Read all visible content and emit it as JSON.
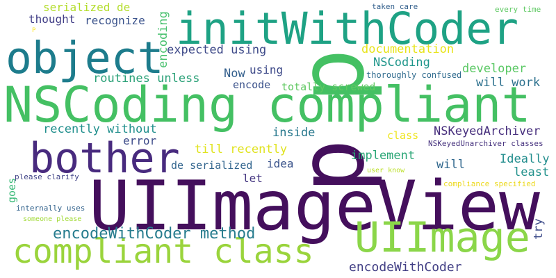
{
  "words": [
    {
      "text": "UIImageView",
      "color": "#440f5c"
    },
    {
      "text": "NSCoding compliant",
      "color": "#44c063"
    },
    {
      "text": "initWithCoder",
      "color": "#1ea284"
    },
    {
      "text": "object",
      "color": "#1d7c8c"
    },
    {
      "text": "p",
      "color": "#44c063"
    },
    {
      "text": "p",
      "color": "#440f5c"
    },
    {
      "text": "bother",
      "color": "#482a7e"
    },
    {
      "text": "compliant class",
      "color": "#9ad43c"
    },
    {
      "text": "UIImage",
      "color": "#8bd649"
    },
    {
      "text": "encodeWithCoder method",
      "color": "#277c8e"
    },
    {
      "text": "encodeWithCoder",
      "color": "#423f85"
    },
    {
      "text": "serialized de",
      "color": "#b3dd2b"
    },
    {
      "text": "thought",
      "color": "#413e86"
    },
    {
      "text": "recognize",
      "color": "#3a528b"
    },
    {
      "text": "expected using",
      "color": "#3e4a89"
    },
    {
      "text": "documentation",
      "color": "#e8e419"
    },
    {
      "text": "NSCoding",
      "color": "#1f968b"
    },
    {
      "text": "developer",
      "color": "#5ac864"
    },
    {
      "text": "will work",
      "color": "#2d718e"
    },
    {
      "text": "routines unless",
      "color": "#2ba178"
    },
    {
      "text": "using",
      "color": "#3e4a89"
    },
    {
      "text": "Now",
      "color": "#34608d"
    },
    {
      "text": "encode",
      "color": "#3b528b"
    },
    {
      "text": "totally screwed",
      "color": "#60c862"
    },
    {
      "text": "thoroughly confused",
      "color": "#2f6b8e"
    },
    {
      "text": "recently without",
      "color": "#218f8d"
    },
    {
      "text": "error",
      "color": "#3e4c8a"
    },
    {
      "text": "inside",
      "color": "#29798e"
    },
    {
      "text": "class",
      "color": "#eee51c"
    },
    {
      "text": "NSKeyedArchiver",
      "color": "#472f7d"
    },
    {
      "text": "NSKeyedUnarchiver classes",
      "color": "#46327e"
    },
    {
      "text": "till recently",
      "color": "#e0e31f"
    },
    {
      "text": "de serialized",
      "color": "#32658e"
    },
    {
      "text": "idea",
      "color": "#3a538b"
    },
    {
      "text": "implement",
      "color": "#2aa676"
    },
    {
      "text": "Ideally",
      "color": "#228d8d"
    },
    {
      "text": "will",
      "color": "#31688e"
    },
    {
      "text": "least",
      "color": "#21918c"
    },
    {
      "text": "let",
      "color": "#453781"
    },
    {
      "text": "try",
      "color": "#3e4c8a"
    },
    {
      "text": "taken care",
      "color": "#34608d"
    },
    {
      "text": "every time",
      "color": "#5ec962"
    },
    {
      "text": "user know",
      "color": "#bbdf27"
    },
    {
      "text": "compliance specified",
      "color": "#ecd91c"
    },
    {
      "text": "please clarify",
      "color": "#414487"
    },
    {
      "text": "internally uses",
      "color": "#33638d"
    },
    {
      "text": "someone please",
      "color": "#a2da37"
    },
    {
      "text": "P",
      "color": "#fde725"
    },
    {
      "text": "encoding",
      "color": "#48c16e"
    },
    {
      "text": "goes",
      "color": "#38b977"
    }
  ]
}
